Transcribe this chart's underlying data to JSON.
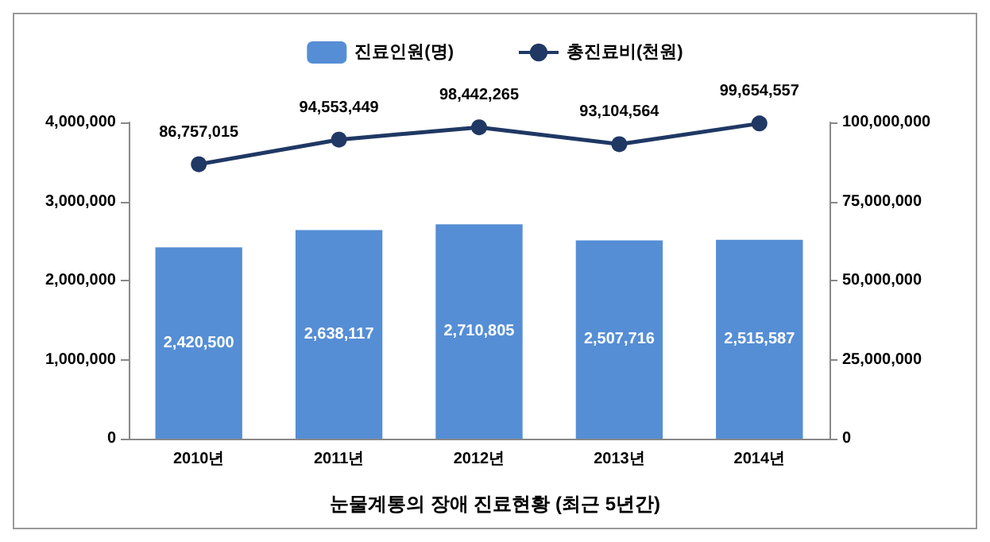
{
  "chart_data": {
    "type": "bar",
    "title": "눈물계통의 장애 진료현황 (최근 5년간)",
    "categories": [
      "2010년",
      "2011년",
      "2012년",
      "2013년",
      "2014년"
    ],
    "series": [
      {
        "name": "진료인원(명)",
        "color": "#558ed5",
        "values": [
          2420500,
          2638117,
          2710805,
          2507716,
          2515587
        ],
        "value_labels": [
          "2,420,500",
          "2,638,117",
          "2,710,805",
          "2,507,716",
          "2,515,587"
        ]
      },
      {
        "name": "총진료비(천원)",
        "type": "line",
        "axis": "y2",
        "color": "#1f3864",
        "marker": "circle",
        "values": [
          86757015,
          94553449,
          98442265,
          93104564,
          99654557
        ],
        "value_labels": [
          "86,757,015",
          "94,553,449",
          "98,442,265",
          "93,104,564",
          "99,654,557"
        ]
      }
    ],
    "ylim": [
      0,
      4000000
    ],
    "yticks": [
      {
        "value": 0,
        "label": "0"
      },
      {
        "value": 1000000,
        "label": "1,000,000"
      },
      {
        "value": 2000000,
        "label": "2,000,000"
      },
      {
        "value": 3000000,
        "label": "3,000,000"
      },
      {
        "value": 4000000,
        "label": "4,000,000"
      }
    ],
    "y2lim": [
      0,
      100000000
    ],
    "y2ticks": [
      {
        "value": 0,
        "label": "0"
      },
      {
        "value": 25000000,
        "label": "25,000,000"
      },
      {
        "value": 50000000,
        "label": "50,000,000"
      },
      {
        "value": 75000000,
        "label": "75,000,000"
      },
      {
        "value": 100000000,
        "label": "100,000,000"
      }
    ],
    "grid": false,
    "legend": "top"
  }
}
